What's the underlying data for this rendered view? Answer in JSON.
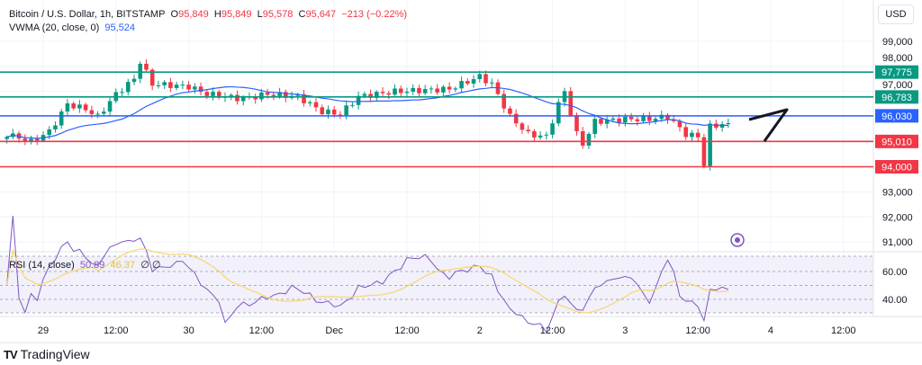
{
  "header": {
    "title": "Bitcoin / U.S. Dollar, 1h, BITSTAMP",
    "o_label": "O",
    "o": "95,849",
    "h_label": "H",
    "h": "95,849",
    "l_label": "L",
    "l": "95,578",
    "c_label": "C",
    "c": "95,647",
    "change": "−213 (−0.22%)",
    "vwma_label": "VWMA (20, close, 0)",
    "vwma": "95,524",
    "currency": "USD"
  },
  "rsi": {
    "label": "RSI (14, close)",
    "value": "50.89",
    "ma_value": "46.37",
    "extra1": "∅",
    "extra2": "∅"
  },
  "colors": {
    "up": "#089981",
    "down": "#f23645",
    "vwma": "#2962ff",
    "rsi": "#7e57c2",
    "rsi_ma": "#f5d76e"
  },
  "footer": {
    "brand": "TradingView"
  },
  "chart_data": {
    "type": "candlestick",
    "title": "Bitcoin / U.S. Dollar, 1h, BITSTAMP",
    "ylim": [
      90600,
      99600
    ],
    "y_ticks": [
      "99,000",
      "98,000",
      "97,000",
      "93,000",
      "92,000",
      "91,000"
    ],
    "y_tick_values": [
      99000,
      98000,
      97000,
      93000,
      92000,
      91000
    ],
    "x_ticks": [
      "29",
      "12:00",
      "30",
      "12:00",
      "Dec",
      "12:00",
      "2",
      "12:00",
      "3",
      "12:00",
      "4",
      "12:00"
    ],
    "x_tick_hours": [
      0,
      12,
      24,
      36,
      48,
      60,
      72,
      84,
      96,
      108,
      120,
      132
    ],
    "start_hour": -6.5,
    "close_anchors": [
      [
        -6,
        95300
      ],
      [
        -2,
        95000
      ],
      [
        1,
        95400
      ],
      [
        4,
        96500
      ],
      [
        7,
        96300
      ],
      [
        9,
        96000
      ],
      [
        12,
        96900
      ],
      [
        15,
        97500
      ],
      [
        16,
        98200
      ],
      [
        18,
        97300
      ],
      [
        24,
        97200
      ],
      [
        27,
        96900
      ],
      [
        33,
        96700
      ],
      [
        37,
        96900
      ],
      [
        42,
        96800
      ],
      [
        46,
        96200
      ],
      [
        49,
        96100
      ],
      [
        52,
        96800
      ],
      [
        58,
        97000
      ],
      [
        67,
        97100
      ],
      [
        72,
        97600
      ],
      [
        74,
        97300
      ],
      [
        77,
        96000
      ],
      [
        80,
        95300
      ],
      [
        83,
        95200
      ],
      [
        85,
        96500
      ],
      [
        86,
        97000
      ],
      [
        88,
        95300
      ],
      [
        89,
        94900
      ],
      [
        91,
        95800
      ],
      [
        96,
        95900
      ],
      [
        100,
        95900
      ],
      [
        103,
        96000
      ],
      [
        106,
        95300
      ],
      [
        108,
        95200
      ],
      [
        109,
        94100
      ],
      [
        110,
        95600
      ],
      [
        112,
        95700
      ],
      [
        113,
        95650
      ]
    ],
    "levels": [
      {
        "value": 97775,
        "label": "97,775",
        "color": "#089981"
      },
      {
        "value": 96783,
        "label": "96,783",
        "color": "#089981"
      },
      {
        "value": 96030,
        "label": "96,030",
        "color": "#2962ff"
      },
      {
        "value": 95010,
        "label": "95,010",
        "color": "#f23645"
      },
      {
        "value": 94000,
        "label": "94,000",
        "color": "#f23645"
      }
    ],
    "rsi_ticks": [
      "60.00",
      "40.00"
    ],
    "rsi_tick_values": [
      60,
      40
    ],
    "rsi_ylim": [
      25,
      75
    ]
  }
}
